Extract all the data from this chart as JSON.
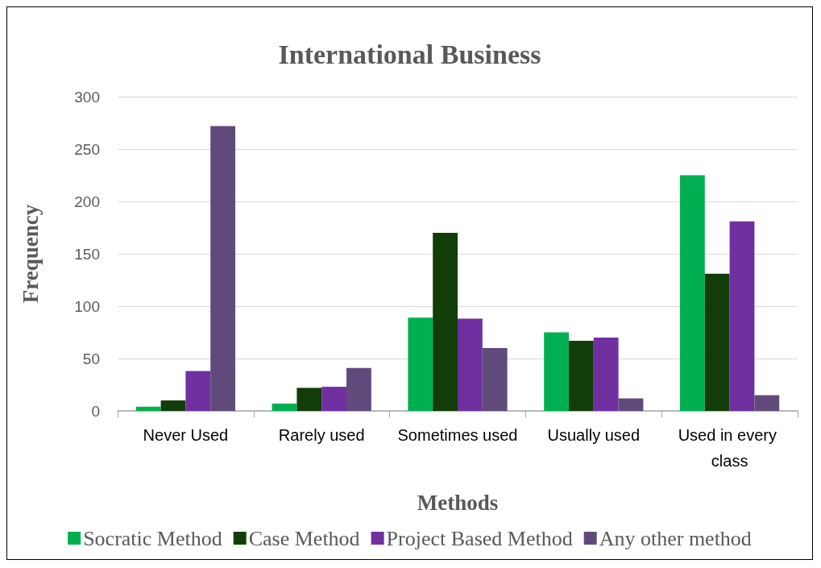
{
  "chart_data": {
    "type": "bar",
    "title": "International Business",
    "xlabel": "Methods",
    "ylabel": "Frequency",
    "categories": [
      "Never Used",
      "Rarely used",
      "Sometimes used",
      "Usually used",
      "Used in every class"
    ],
    "series": [
      {
        "name": "Socratic Method",
        "color": "#00b050",
        "values": [
          4,
          7,
          89,
          75,
          225
        ]
      },
      {
        "name": "Case Method",
        "color": "#123d09",
        "values": [
          10,
          22,
          170,
          67,
          131
        ]
      },
      {
        "name": "Project Based Method",
        "color": "#7030a0",
        "values": [
          38,
          23,
          88,
          70,
          181
        ]
      },
      {
        "name": "Any other method",
        "color": "#604a7b",
        "values": [
          272,
          41,
          60,
          12,
          15
        ]
      }
    ],
    "ylim": [
      0,
      300
    ],
    "yticks": [
      0,
      50,
      100,
      150,
      200,
      250,
      300
    ],
    "grid": "y",
    "legend": "bottom"
  }
}
